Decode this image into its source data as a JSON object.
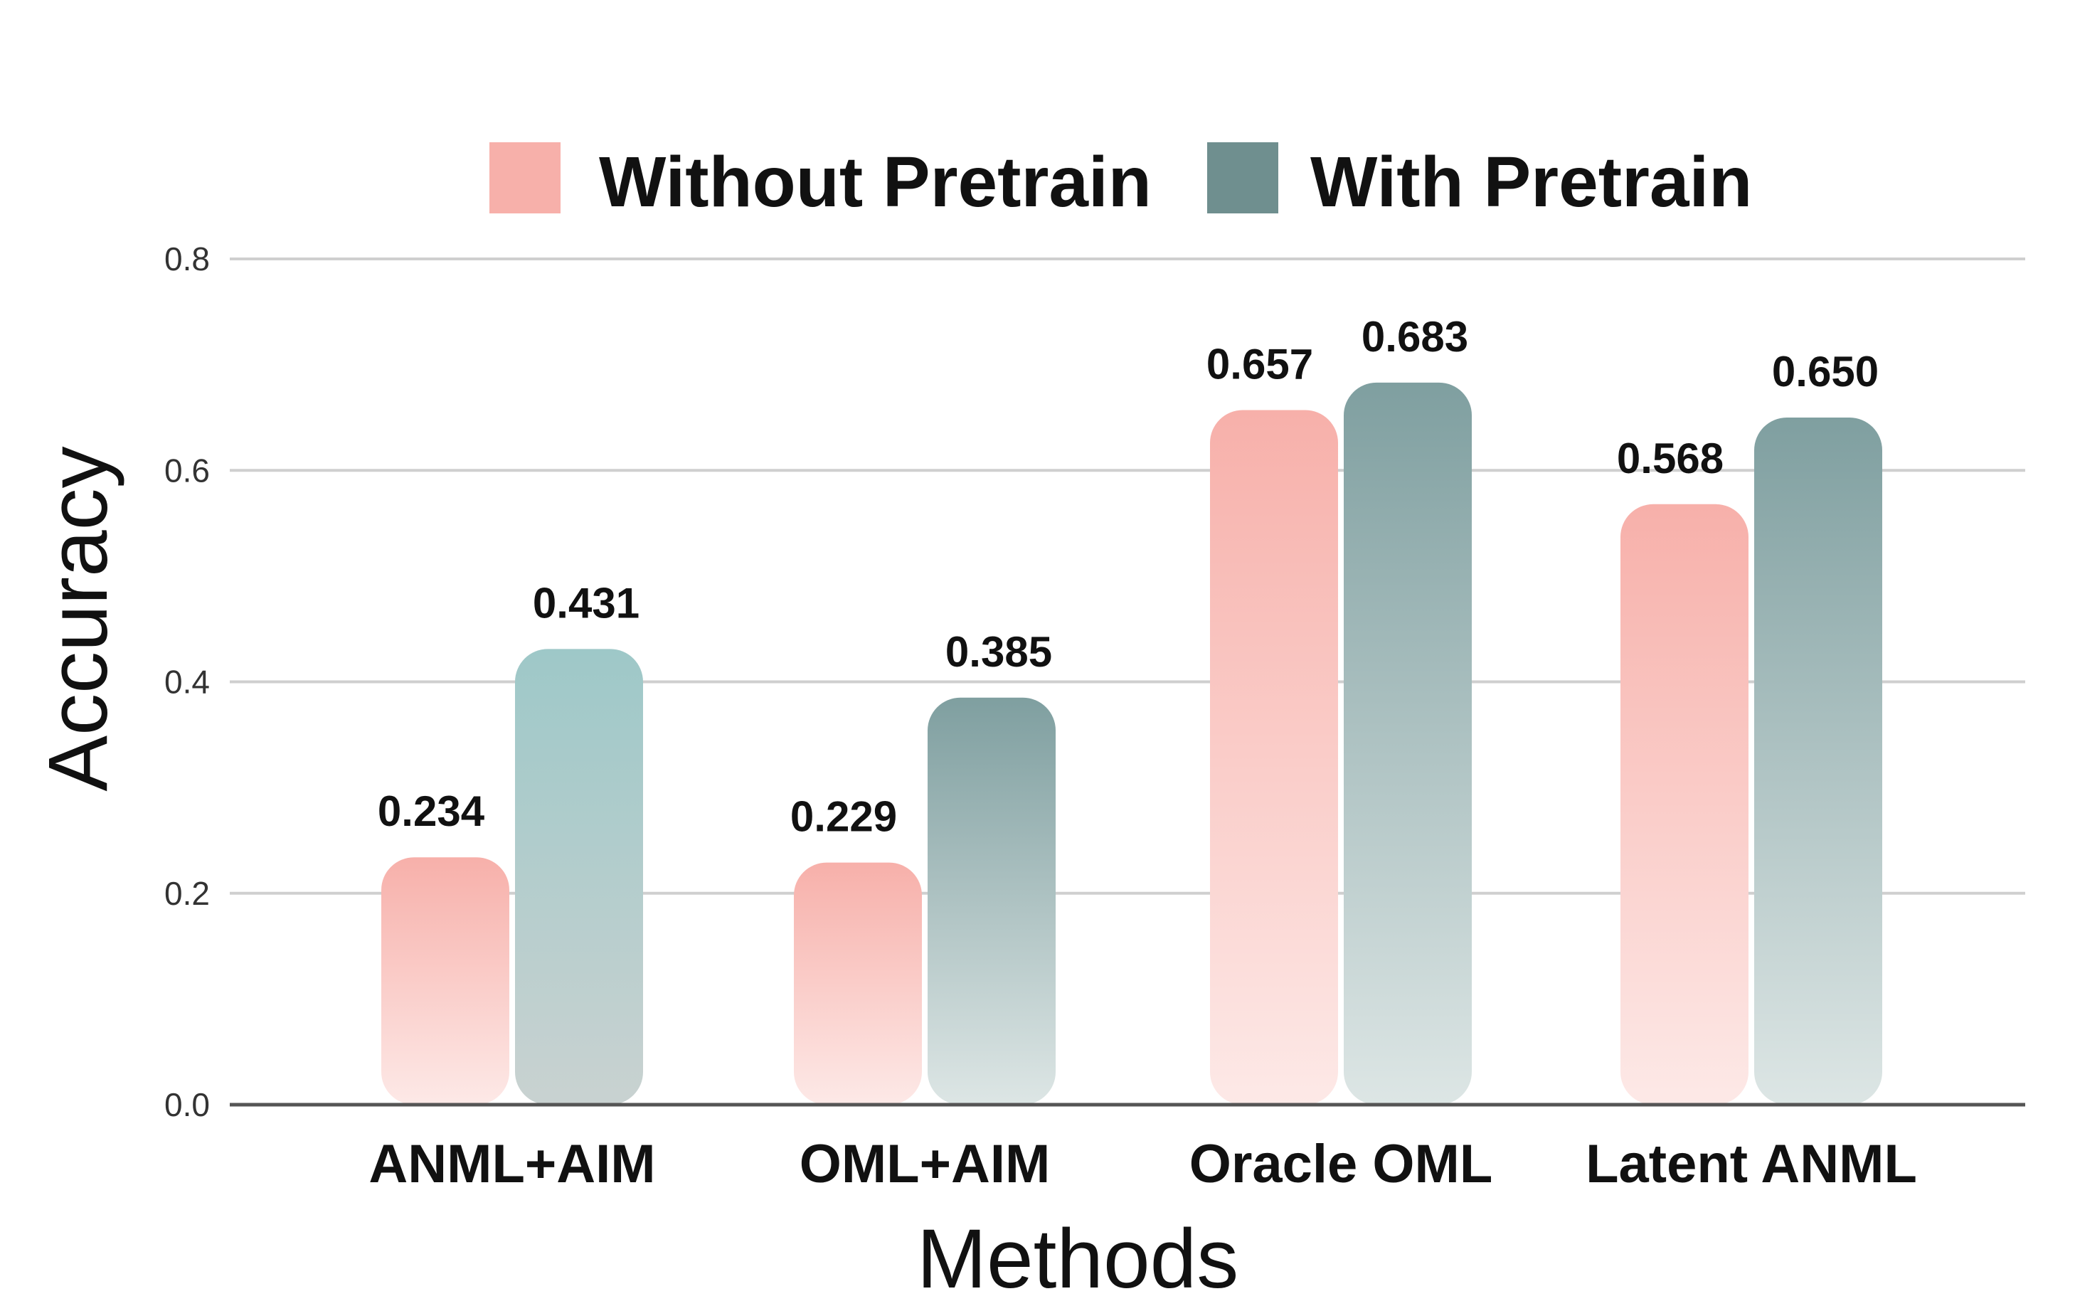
{
  "chart_data": {
    "type": "bar",
    "categories": [
      "ANML+AIM",
      "OML+AIM",
      "Oracle OML",
      "Latent ANML"
    ],
    "series": [
      {
        "name": "Without Pretrain",
        "values": [
          0.234,
          0.229,
          0.657,
          0.568
        ],
        "labels": [
          "0.234",
          "0.229",
          "0.657",
          "0.568"
        ],
        "color": "#f7b0aa"
      },
      {
        "name": "With Pretrain",
        "values": [
          0.431,
          0.385,
          0.683,
          0.65
        ],
        "labels": [
          "0.431",
          "0.385",
          "0.683",
          "0.650"
        ],
        "color": "#6f8f8f"
      }
    ],
    "yticks": [
      "0.0",
      "0.2",
      "0.4",
      "0.6",
      "0.8"
    ],
    "ylim": [
      0,
      0.8
    ],
    "title": "",
    "xlabel": "Methods",
    "ylabel": "Accuracy",
    "grid": true,
    "legend_position": "top-center"
  }
}
